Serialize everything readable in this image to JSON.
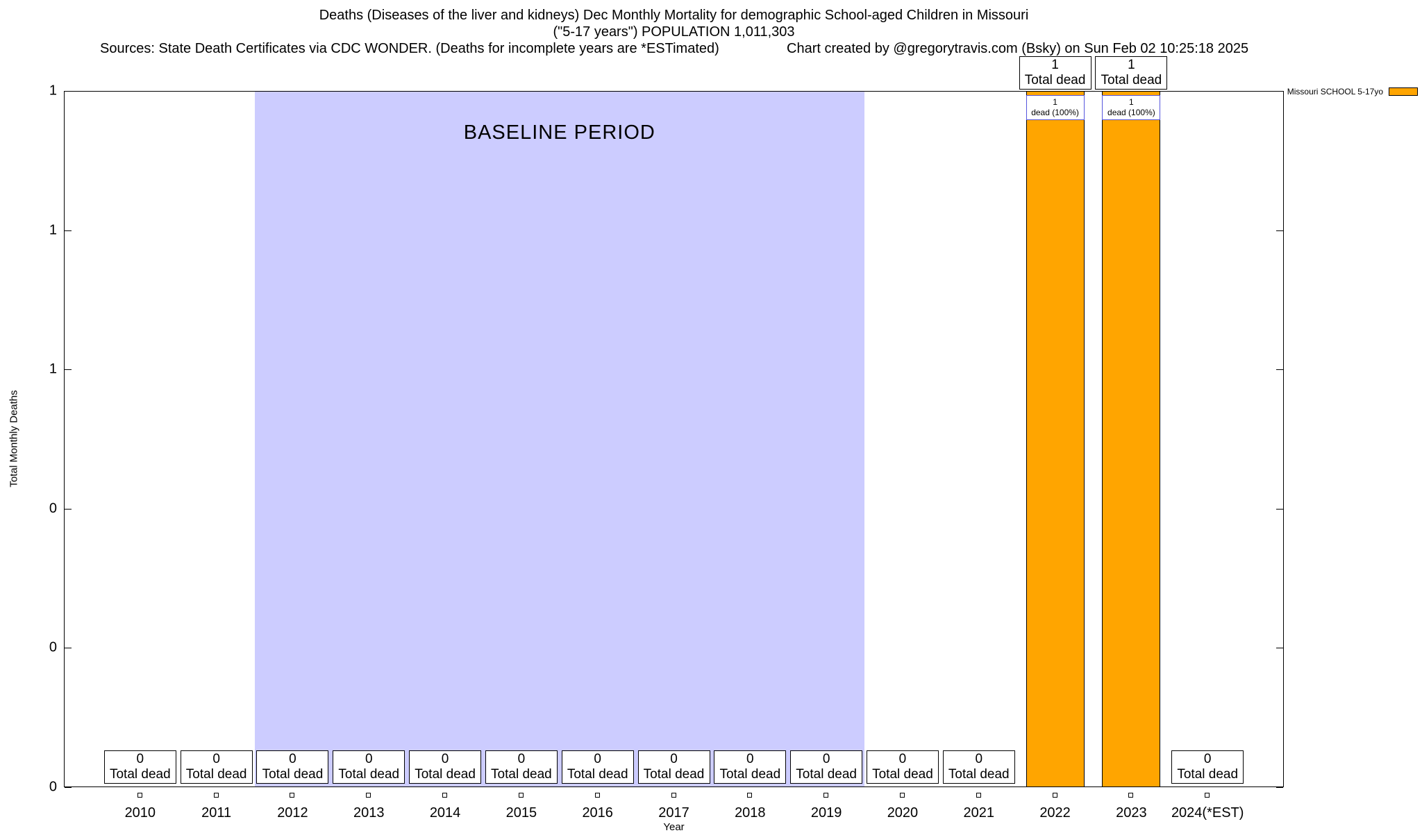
{
  "chart_data": {
    "type": "bar",
    "title": "Deaths (Diseases of the liver and kidneys) Dec Monthly Mortality for demographic School-aged Children in Missouri",
    "subtitle": "(\"5-17 years\") POPULATION 1,011,303",
    "sources": "Sources: State Death Certificates via CDC WONDER. (Deaths for incomplete years are *ESTimated)",
    "credit": "Chart created by @gregorytravis.com (Bsky) on Sun Feb 02 10:25:18 2025",
    "xlabel": "Year",
    "ylabel": "Total Monthly Deaths",
    "ylim": [
      0,
      1
    ],
    "yticks": [
      {
        "value": 1.0,
        "label": "1"
      },
      {
        "value": 0.8,
        "label": "1"
      },
      {
        "value": 0.6,
        "label": "1"
      },
      {
        "value": 0.4,
        "label": "0"
      },
      {
        "value": 0.2,
        "label": "0"
      },
      {
        "value": 0.0,
        "label": "0"
      }
    ],
    "categories": [
      "2010",
      "2011",
      "2012",
      "2013",
      "2014",
      "2015",
      "2016",
      "2017",
      "2018",
      "2019",
      "2020",
      "2021",
      "2022",
      "2023",
      "2024(*EST)"
    ],
    "values": [
      0,
      0,
      0,
      0,
      0,
      0,
      0,
      0,
      0,
      0,
      0,
      0,
      1,
      1,
      0
    ],
    "bar_color": "#FFA500",
    "baseline_band": {
      "label": "BASELINE PERIOD",
      "from_year": "2012",
      "to_year": "2019",
      "color": "#CCCCFF"
    },
    "legend": {
      "label": "Missouri SCHOOL 5-17yo",
      "swatch_color": "#FFA500"
    },
    "annotations": [
      {
        "year": "2010",
        "position": "bottom",
        "lines": [
          "0",
          "Total dead"
        ]
      },
      {
        "year": "2011",
        "position": "bottom",
        "lines": [
          "0",
          "Total dead"
        ]
      },
      {
        "year": "2012",
        "position": "bottom",
        "lines": [
          "0",
          "Total dead"
        ]
      },
      {
        "year": "2013",
        "position": "bottom",
        "lines": [
          "0",
          "Total dead"
        ]
      },
      {
        "year": "2014",
        "position": "bottom",
        "lines": [
          "0",
          "Total dead"
        ]
      },
      {
        "year": "2015",
        "position": "bottom",
        "lines": [
          "0",
          "Total dead"
        ]
      },
      {
        "year": "2016",
        "position": "bottom",
        "lines": [
          "0",
          "Total dead"
        ]
      },
      {
        "year": "2017",
        "position": "bottom",
        "lines": [
          "0",
          "Total dead"
        ]
      },
      {
        "year": "2018",
        "position": "bottom",
        "lines": [
          "0",
          "Total dead"
        ]
      },
      {
        "year": "2019",
        "position": "bottom",
        "lines": [
          "0",
          "Total dead"
        ]
      },
      {
        "year": "2020",
        "position": "bottom",
        "lines": [
          "0",
          "Total dead"
        ]
      },
      {
        "year": "2021",
        "position": "bottom",
        "lines": [
          "0",
          "Total dead"
        ]
      },
      {
        "year": "2022",
        "position": "top",
        "lines": [
          "1",
          "Total dead"
        ]
      },
      {
        "year": "2022",
        "position": "inside-bar",
        "lines": [
          "1",
          "dead (100%)"
        ]
      },
      {
        "year": "2023",
        "position": "top",
        "lines": [
          "1",
          "Total dead"
        ]
      },
      {
        "year": "2023",
        "position": "inside-bar",
        "lines": [
          "1",
          "dead (100%)"
        ]
      },
      {
        "year": "2024(*EST)",
        "position": "bottom",
        "lines": [
          "0",
          "Total dead"
        ]
      }
    ]
  }
}
